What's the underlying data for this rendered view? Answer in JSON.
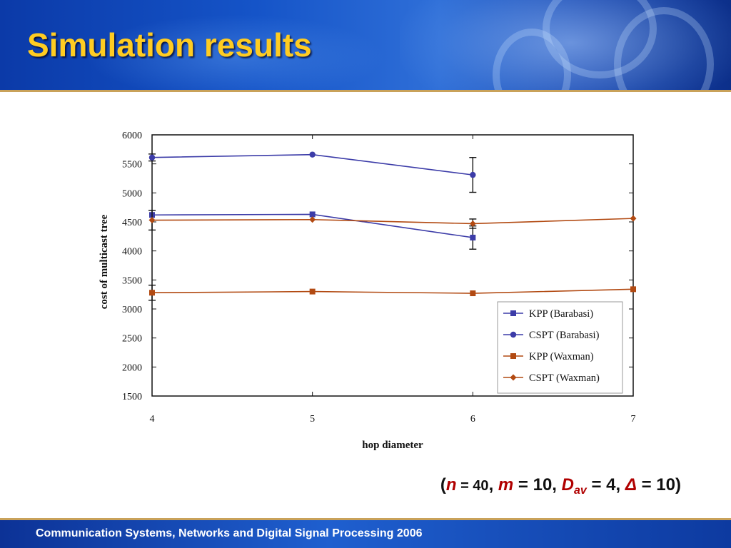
{
  "slide": {
    "title": "Simulation results",
    "footer": "Communication Systems, Networks and Digital Signal Processing 2006",
    "params": {
      "n_var": "n",
      "n_eq": " = 40",
      "sep1": ", ",
      "m_var": "m",
      "m_eq": " = 10",
      "sep2": ", ",
      "d_var": "D",
      "d_sub": "av",
      "d_eq": " = 4",
      "sep3": ", ",
      "delta_sym": "Δ",
      "delta_eq": " = 10"
    }
  },
  "colors": {
    "title": "#ffcc22",
    "blue_series": "#3c3ca8",
    "orange_series": "#b24a12",
    "accent_rule": "#c9a25a"
  },
  "chart_data": {
    "type": "line",
    "xlabel": "hop diameter",
    "ylabel": "cost of multicast tree",
    "x": [
      4,
      5,
      6,
      7
    ],
    "xlim": [
      4,
      7
    ],
    "ylim": [
      1500,
      6000
    ],
    "xticks": [
      "4",
      "5",
      "6",
      "7"
    ],
    "yticks": [
      "1500",
      "2000",
      "2500",
      "3000",
      "3500",
      "4000",
      "4500",
      "5000",
      "5500",
      "6000"
    ],
    "grid": false,
    "legend_position": "lower-right",
    "series": [
      {
        "name": "KPP (Barabasi)",
        "marker": "square",
        "color": "#3c3ca8",
        "x": [
          4,
          5,
          6
        ],
        "values": [
          4620,
          4630,
          4230
        ],
        "err": [
          null,
          null,
          200
        ]
      },
      {
        "name": "CSPT (Barabasi)",
        "marker": "circle",
        "color": "#3c3ca8",
        "x": [
          4,
          5,
          6
        ],
        "values": [
          5610,
          5660,
          5310
        ],
        "err": [
          60,
          null,
          300
        ]
      },
      {
        "name": "KPP (Waxman)",
        "marker": "square",
        "color": "#b24a12",
        "x": [
          4,
          5,
          6,
          7
        ],
        "values": [
          3280,
          3300,
          3270,
          3340
        ],
        "err": [
          130,
          null,
          null,
          null
        ]
      },
      {
        "name": "CSPT (Waxman)",
        "marker": "diamond",
        "color": "#b24a12",
        "x": [
          4,
          5,
          6,
          7
        ],
        "values": [
          4530,
          4540,
          4470,
          4560
        ],
        "err": [
          170,
          null,
          80,
          null
        ]
      }
    ]
  }
}
